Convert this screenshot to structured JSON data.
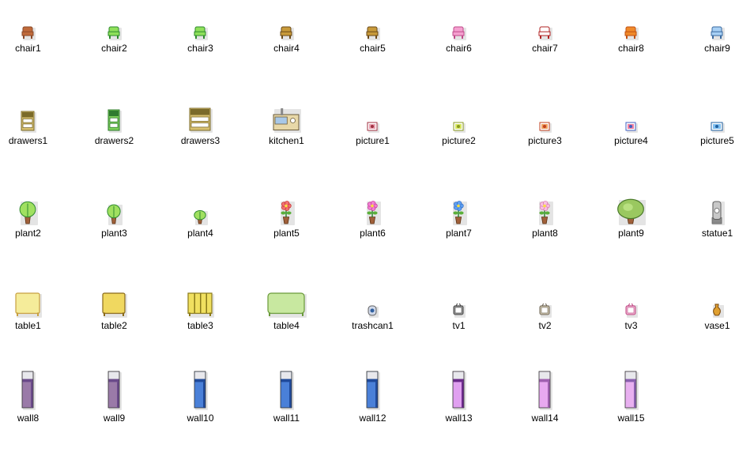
{
  "files": [
    {
      "name": "chair1",
      "icon": "chair1-icon",
      "kind": "chair",
      "c1": "#8a4a2a",
      "c2": "#c06a3a",
      "w": 16,
      "h": 16
    },
    {
      "name": "chair2",
      "icon": "chair2-icon",
      "kind": "chair",
      "c1": "#2e8a2e",
      "c2": "#8fe05a",
      "w": 16,
      "h": 16
    },
    {
      "name": "chair3",
      "icon": "chair3-icon",
      "kind": "chair",
      "c1": "#2e8a2e",
      "c2": "#8fe05a",
      "w": 16,
      "h": 16
    },
    {
      "name": "chair4",
      "icon": "chair4-icon",
      "kind": "chair",
      "c1": "#6a4a1a",
      "c2": "#c89a3a",
      "w": 16,
      "h": 16
    },
    {
      "name": "chair5",
      "icon": "chair5-icon",
      "kind": "chair",
      "c1": "#6a4a1a",
      "c2": "#c89a3a",
      "w": 16,
      "h": 16
    },
    {
      "name": "chair6",
      "icon": "chair6-icon",
      "kind": "chair",
      "c1": "#c04a8a",
      "c2": "#f5a0d0",
      "w": 16,
      "h": 16
    },
    {
      "name": "chair7",
      "icon": "chair7-icon",
      "kind": "chair",
      "c1": "#b02020",
      "c2": "#ffffff",
      "w": 16,
      "h": 16
    },
    {
      "name": "chair8",
      "icon": "chair8-icon",
      "kind": "chair",
      "c1": "#c05010",
      "c2": "#f08a2a",
      "w": 16,
      "h": 16
    },
    {
      "name": "chair9",
      "icon": "chair9-icon",
      "kind": "chair",
      "c1": "#3a6aa0",
      "c2": "#a8d0f5",
      "w": 16,
      "h": 16
    },
    {
      "name": "drawers1",
      "icon": "drawers1-icon",
      "kind": "drawers",
      "c1": "#7a6a2a",
      "c2": "#d8c070",
      "w": 18,
      "h": 26
    },
    {
      "name": "drawers2",
      "icon": "drawers2-icon",
      "kind": "drawers",
      "c1": "#2e7a2e",
      "c2": "#7ed05a",
      "w": 16,
      "h": 28
    },
    {
      "name": "drawers3",
      "icon": "drawers3-icon",
      "kind": "drawers",
      "c1": "#7a6a2a",
      "c2": "#d8c070",
      "w": 28,
      "h": 30
    },
    {
      "name": "kitchen1",
      "icon": "kitchen1-icon",
      "kind": "kitchen",
      "c1": "#6a5a3a",
      "c2": "#e8d8a8",
      "w": 34,
      "h": 30
    },
    {
      "name": "picture1",
      "icon": "picture1-icon",
      "kind": "picture",
      "c1": "#a03040",
      "c2": "#e8a0b0",
      "w": 14,
      "h": 12
    },
    {
      "name": "picture2",
      "icon": "picture2-icon",
      "kind": "picture",
      "c1": "#8a9a20",
      "c2": "#d8e860",
      "w": 14,
      "h": 12
    },
    {
      "name": "picture3",
      "icon": "picture3-icon",
      "kind": "picture",
      "c1": "#c04020",
      "c2": "#f0a060",
      "w": 14,
      "h": 12
    },
    {
      "name": "picture4",
      "icon": "picture4-icon",
      "kind": "picture",
      "c1": "#4060c0",
      "c2": "#f080a0",
      "w": 14,
      "h": 12
    },
    {
      "name": "picture5",
      "icon": "picture5-icon",
      "kind": "picture",
      "c1": "#2060a0",
      "c2": "#80c0f0",
      "w": 16,
      "h": 12
    },
    {
      "name": "plant2",
      "icon": "plant2-icon",
      "kind": "plant",
      "c1": "#2e8a2e",
      "c2": "#a0e060",
      "w": 22,
      "h": 30
    },
    {
      "name": "plant3",
      "icon": "plant3-icon",
      "kind": "plant",
      "c1": "#2e8a2e",
      "c2": "#a0e060",
      "w": 18,
      "h": 26
    },
    {
      "name": "plant4",
      "icon": "plant4-icon",
      "kind": "plant",
      "c1": "#2e8a2e",
      "c2": "#a0e060",
      "w": 16,
      "h": 18
    },
    {
      "name": "plant5",
      "icon": "plant5-icon",
      "kind": "flower",
      "c1": "#c02020",
      "c2": "#f07070",
      "w": 18,
      "h": 30
    },
    {
      "name": "plant6",
      "icon": "plant6-icon",
      "kind": "flower",
      "c1": "#c02090",
      "c2": "#f080d0",
      "w": 18,
      "h": 30
    },
    {
      "name": "plant7",
      "icon": "plant7-icon",
      "kind": "flower",
      "c1": "#2060c0",
      "c2": "#60a0f0",
      "w": 18,
      "h": 30
    },
    {
      "name": "plant8",
      "icon": "plant8-icon",
      "kind": "flower",
      "c1": "#d060a0",
      "c2": "#f8c0e0",
      "w": 18,
      "h": 30
    },
    {
      "name": "plant9",
      "icon": "plant9-icon",
      "kind": "bush",
      "c1": "#4a7a2a",
      "c2": "#9ac860",
      "w": 34,
      "h": 32
    },
    {
      "name": "statue1",
      "icon": "statue1-icon",
      "kind": "statue",
      "c1": "#606060",
      "c2": "#c8c8c8",
      "w": 16,
      "h": 30
    },
    {
      "name": "table1",
      "icon": "table1-icon",
      "kind": "table",
      "c1": "#c8a040",
      "c2": "#f5ec9a",
      "w": 32,
      "h": 30
    },
    {
      "name": "table2",
      "icon": "table2-icon",
      "kind": "table",
      "c1": "#8a6a1a",
      "c2": "#f0d860",
      "w": 30,
      "h": 30
    },
    {
      "name": "table3",
      "icon": "table3-icon",
      "kind": "table3",
      "c1": "#8a7a1a",
      "c2": "#f0e060",
      "w": 32,
      "h": 30
    },
    {
      "name": "table4",
      "icon": "table4-icon",
      "kind": "table",
      "c1": "#6a9a3a",
      "c2": "#c8e8a0",
      "w": 48,
      "h": 30
    },
    {
      "name": "trashcan1",
      "icon": "trashcan1-icon",
      "kind": "trash",
      "c1": "#3060a0",
      "c2": "#d0d8e8",
      "w": 12,
      "h": 14
    },
    {
      "name": "tv1",
      "icon": "tv1-icon",
      "kind": "tv",
      "c1": "#404040",
      "c2": "#a0a0a0",
      "w": 14,
      "h": 16
    },
    {
      "name": "tv2",
      "icon": "tv2-icon",
      "kind": "tv",
      "c1": "#6a6050",
      "c2": "#d8d0b8",
      "w": 14,
      "h": 16
    },
    {
      "name": "tv3",
      "icon": "tv3-icon",
      "kind": "tv",
      "c1": "#c04080",
      "c2": "#f0c0d8",
      "w": 14,
      "h": 16
    },
    {
      "name": "vase1",
      "icon": "vase1-icon",
      "kind": "vase",
      "c1": "#7a4a10",
      "c2": "#e0a030",
      "w": 14,
      "h": 16
    },
    {
      "name": "wall8",
      "icon": "wall8-icon",
      "kind": "wall",
      "c1": "#6a4a8a",
      "c2": "#9a7aa8",
      "w": 16,
      "h": 48
    },
    {
      "name": "wall9",
      "icon": "wall9-icon",
      "kind": "wall",
      "c1": "#6a4a8a",
      "c2": "#9a7aa8",
      "w": 16,
      "h": 48
    },
    {
      "name": "wall10",
      "icon": "wall10-icon",
      "kind": "wall",
      "c1": "#204a9a",
      "c2": "#4a80d8",
      "w": 16,
      "h": 48
    },
    {
      "name": "wall11",
      "icon": "wall11-icon",
      "kind": "wall",
      "c1": "#204a9a",
      "c2": "#4a80d8",
      "w": 16,
      "h": 48
    },
    {
      "name": "wall12",
      "icon": "wall12-icon",
      "kind": "wall",
      "c1": "#204a9a",
      "c2": "#4a80d8",
      "w": 16,
      "h": 48
    },
    {
      "name": "wall13",
      "icon": "wall13-icon",
      "kind": "wall",
      "c1": "#6a2a8a",
      "c2": "#e0a0f0",
      "w": 16,
      "h": 48
    },
    {
      "name": "wall14",
      "icon": "wall14-icon",
      "kind": "wall",
      "c1": "#a060b0",
      "c2": "#e8a8f0",
      "w": 16,
      "h": 48
    },
    {
      "name": "wall15",
      "icon": "wall15-icon",
      "kind": "wall",
      "c1": "#8a60b0",
      "c2": "#e8b0f0",
      "w": 16,
      "h": 48
    }
  ]
}
